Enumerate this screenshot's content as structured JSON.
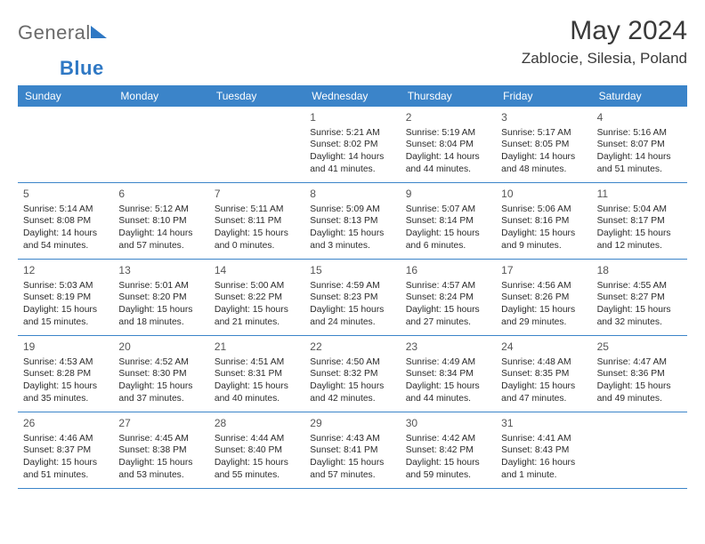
{
  "brand": {
    "word1": "General",
    "word2": "Blue"
  },
  "title": {
    "month": "May 2024",
    "location": "Zablocie, Silesia, Poland"
  },
  "colors": {
    "header_bg": "#3b84c9",
    "header_text": "#ffffff",
    "border": "#3b84c9",
    "logo_gray": "#6a6a6a",
    "logo_blue": "#2f78c4",
    "text": "#2b2b2b"
  },
  "dayNames": [
    "Sunday",
    "Monday",
    "Tuesday",
    "Wednesday",
    "Thursday",
    "Friday",
    "Saturday"
  ],
  "weeks": [
    [
      null,
      null,
      null,
      {
        "d": "1",
        "sr": "5:21 AM",
        "ss": "8:02 PM",
        "dl": "14 hours and 41 minutes."
      },
      {
        "d": "2",
        "sr": "5:19 AM",
        "ss": "8:04 PM",
        "dl": "14 hours and 44 minutes."
      },
      {
        "d": "3",
        "sr": "5:17 AM",
        "ss": "8:05 PM",
        "dl": "14 hours and 48 minutes."
      },
      {
        "d": "4",
        "sr": "5:16 AM",
        "ss": "8:07 PM",
        "dl": "14 hours and 51 minutes."
      }
    ],
    [
      {
        "d": "5",
        "sr": "5:14 AM",
        "ss": "8:08 PM",
        "dl": "14 hours and 54 minutes."
      },
      {
        "d": "6",
        "sr": "5:12 AM",
        "ss": "8:10 PM",
        "dl": "14 hours and 57 minutes."
      },
      {
        "d": "7",
        "sr": "5:11 AM",
        "ss": "8:11 PM",
        "dl": "15 hours and 0 minutes."
      },
      {
        "d": "8",
        "sr": "5:09 AM",
        "ss": "8:13 PM",
        "dl": "15 hours and 3 minutes."
      },
      {
        "d": "9",
        "sr": "5:07 AM",
        "ss": "8:14 PM",
        "dl": "15 hours and 6 minutes."
      },
      {
        "d": "10",
        "sr": "5:06 AM",
        "ss": "8:16 PM",
        "dl": "15 hours and 9 minutes."
      },
      {
        "d": "11",
        "sr": "5:04 AM",
        "ss": "8:17 PM",
        "dl": "15 hours and 12 minutes."
      }
    ],
    [
      {
        "d": "12",
        "sr": "5:03 AM",
        "ss": "8:19 PM",
        "dl": "15 hours and 15 minutes."
      },
      {
        "d": "13",
        "sr": "5:01 AM",
        "ss": "8:20 PM",
        "dl": "15 hours and 18 minutes."
      },
      {
        "d": "14",
        "sr": "5:00 AM",
        "ss": "8:22 PM",
        "dl": "15 hours and 21 minutes."
      },
      {
        "d": "15",
        "sr": "4:59 AM",
        "ss": "8:23 PM",
        "dl": "15 hours and 24 minutes."
      },
      {
        "d": "16",
        "sr": "4:57 AM",
        "ss": "8:24 PM",
        "dl": "15 hours and 27 minutes."
      },
      {
        "d": "17",
        "sr": "4:56 AM",
        "ss": "8:26 PM",
        "dl": "15 hours and 29 minutes."
      },
      {
        "d": "18",
        "sr": "4:55 AM",
        "ss": "8:27 PM",
        "dl": "15 hours and 32 minutes."
      }
    ],
    [
      {
        "d": "19",
        "sr": "4:53 AM",
        "ss": "8:28 PM",
        "dl": "15 hours and 35 minutes."
      },
      {
        "d": "20",
        "sr": "4:52 AM",
        "ss": "8:30 PM",
        "dl": "15 hours and 37 minutes."
      },
      {
        "d": "21",
        "sr": "4:51 AM",
        "ss": "8:31 PM",
        "dl": "15 hours and 40 minutes."
      },
      {
        "d": "22",
        "sr": "4:50 AM",
        "ss": "8:32 PM",
        "dl": "15 hours and 42 minutes."
      },
      {
        "d": "23",
        "sr": "4:49 AM",
        "ss": "8:34 PM",
        "dl": "15 hours and 44 minutes."
      },
      {
        "d": "24",
        "sr": "4:48 AM",
        "ss": "8:35 PM",
        "dl": "15 hours and 47 minutes."
      },
      {
        "d": "25",
        "sr": "4:47 AM",
        "ss": "8:36 PM",
        "dl": "15 hours and 49 minutes."
      }
    ],
    [
      {
        "d": "26",
        "sr": "4:46 AM",
        "ss": "8:37 PM",
        "dl": "15 hours and 51 minutes."
      },
      {
        "d": "27",
        "sr": "4:45 AM",
        "ss": "8:38 PM",
        "dl": "15 hours and 53 minutes."
      },
      {
        "d": "28",
        "sr": "4:44 AM",
        "ss": "8:40 PM",
        "dl": "15 hours and 55 minutes."
      },
      {
        "d": "29",
        "sr": "4:43 AM",
        "ss": "8:41 PM",
        "dl": "15 hours and 57 minutes."
      },
      {
        "d": "30",
        "sr": "4:42 AM",
        "ss": "8:42 PM",
        "dl": "15 hours and 59 minutes."
      },
      {
        "d": "31",
        "sr": "4:41 AM",
        "ss": "8:43 PM",
        "dl": "16 hours and 1 minute."
      },
      null
    ]
  ],
  "labels": {
    "sunrise": "Sunrise: ",
    "sunset": "Sunset: ",
    "daylight": "Daylight: "
  }
}
